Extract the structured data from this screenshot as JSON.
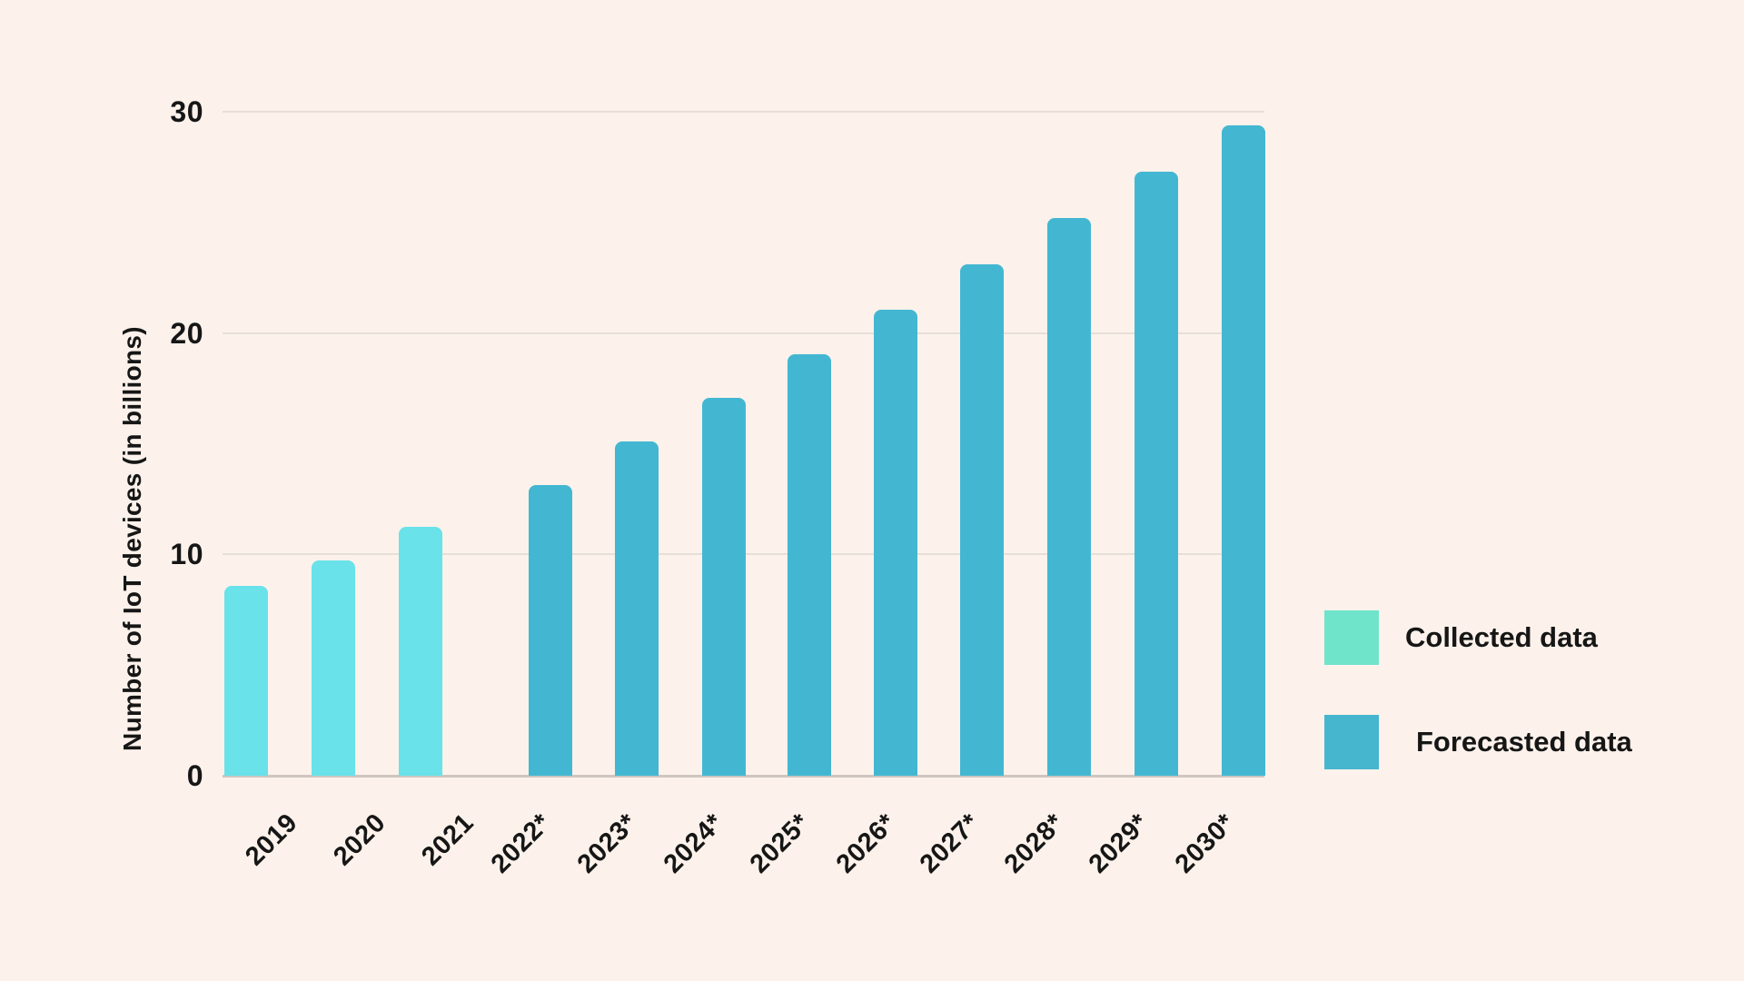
{
  "background_color": "#FCF2EB",
  "text_color": "#161616",
  "gridline_color": "#E6DFD8",
  "axis_line_color": "#CDC6C0",
  "chart_data": {
    "type": "bar",
    "title": "",
    "xlabel": "",
    "ylabel": "Number of IoT devices (in billions)",
    "ylim": [
      0,
      30
    ],
    "yticks": [
      0,
      10,
      20,
      30
    ],
    "grid": "horizontal gridlines at 10, 20, 30; solid axis line at 0",
    "legend_position": "right",
    "categories": [
      "2019",
      "2020",
      "2021",
      "2022*",
      "2023*",
      "2024*",
      "2025*",
      "2026*",
      "2027*",
      "2028*",
      "2029*",
      "2030*"
    ],
    "series": [
      {
        "name": "Collected data",
        "bar_color": "#69E2E9",
        "legend_swatch_color": "#6FE4CB",
        "categories": [
          "2019",
          "2020",
          "2021"
        ],
        "values": [
          8.6,
          9.76,
          11.28
        ]
      },
      {
        "name": "Forecasted data",
        "bar_color": "#43B7D2",
        "legend_swatch_color": "#45B6CE",
        "categories": [
          "2022*",
          "2023*",
          "2024*",
          "2025*",
          "2026*",
          "2027*",
          "2028*",
          "2029*",
          "2030*"
        ],
        "values": [
          13.14,
          15.14,
          17.08,
          19.08,
          21.09,
          23.14,
          25.21,
          27.31,
          29.42
        ]
      }
    ]
  },
  "legend": {
    "items": [
      {
        "label": "Collected data",
        "swatch_color": "#6FE4CB"
      },
      {
        "label": "Forecasted data",
        "swatch_color": "#45B6CE"
      }
    ]
  }
}
